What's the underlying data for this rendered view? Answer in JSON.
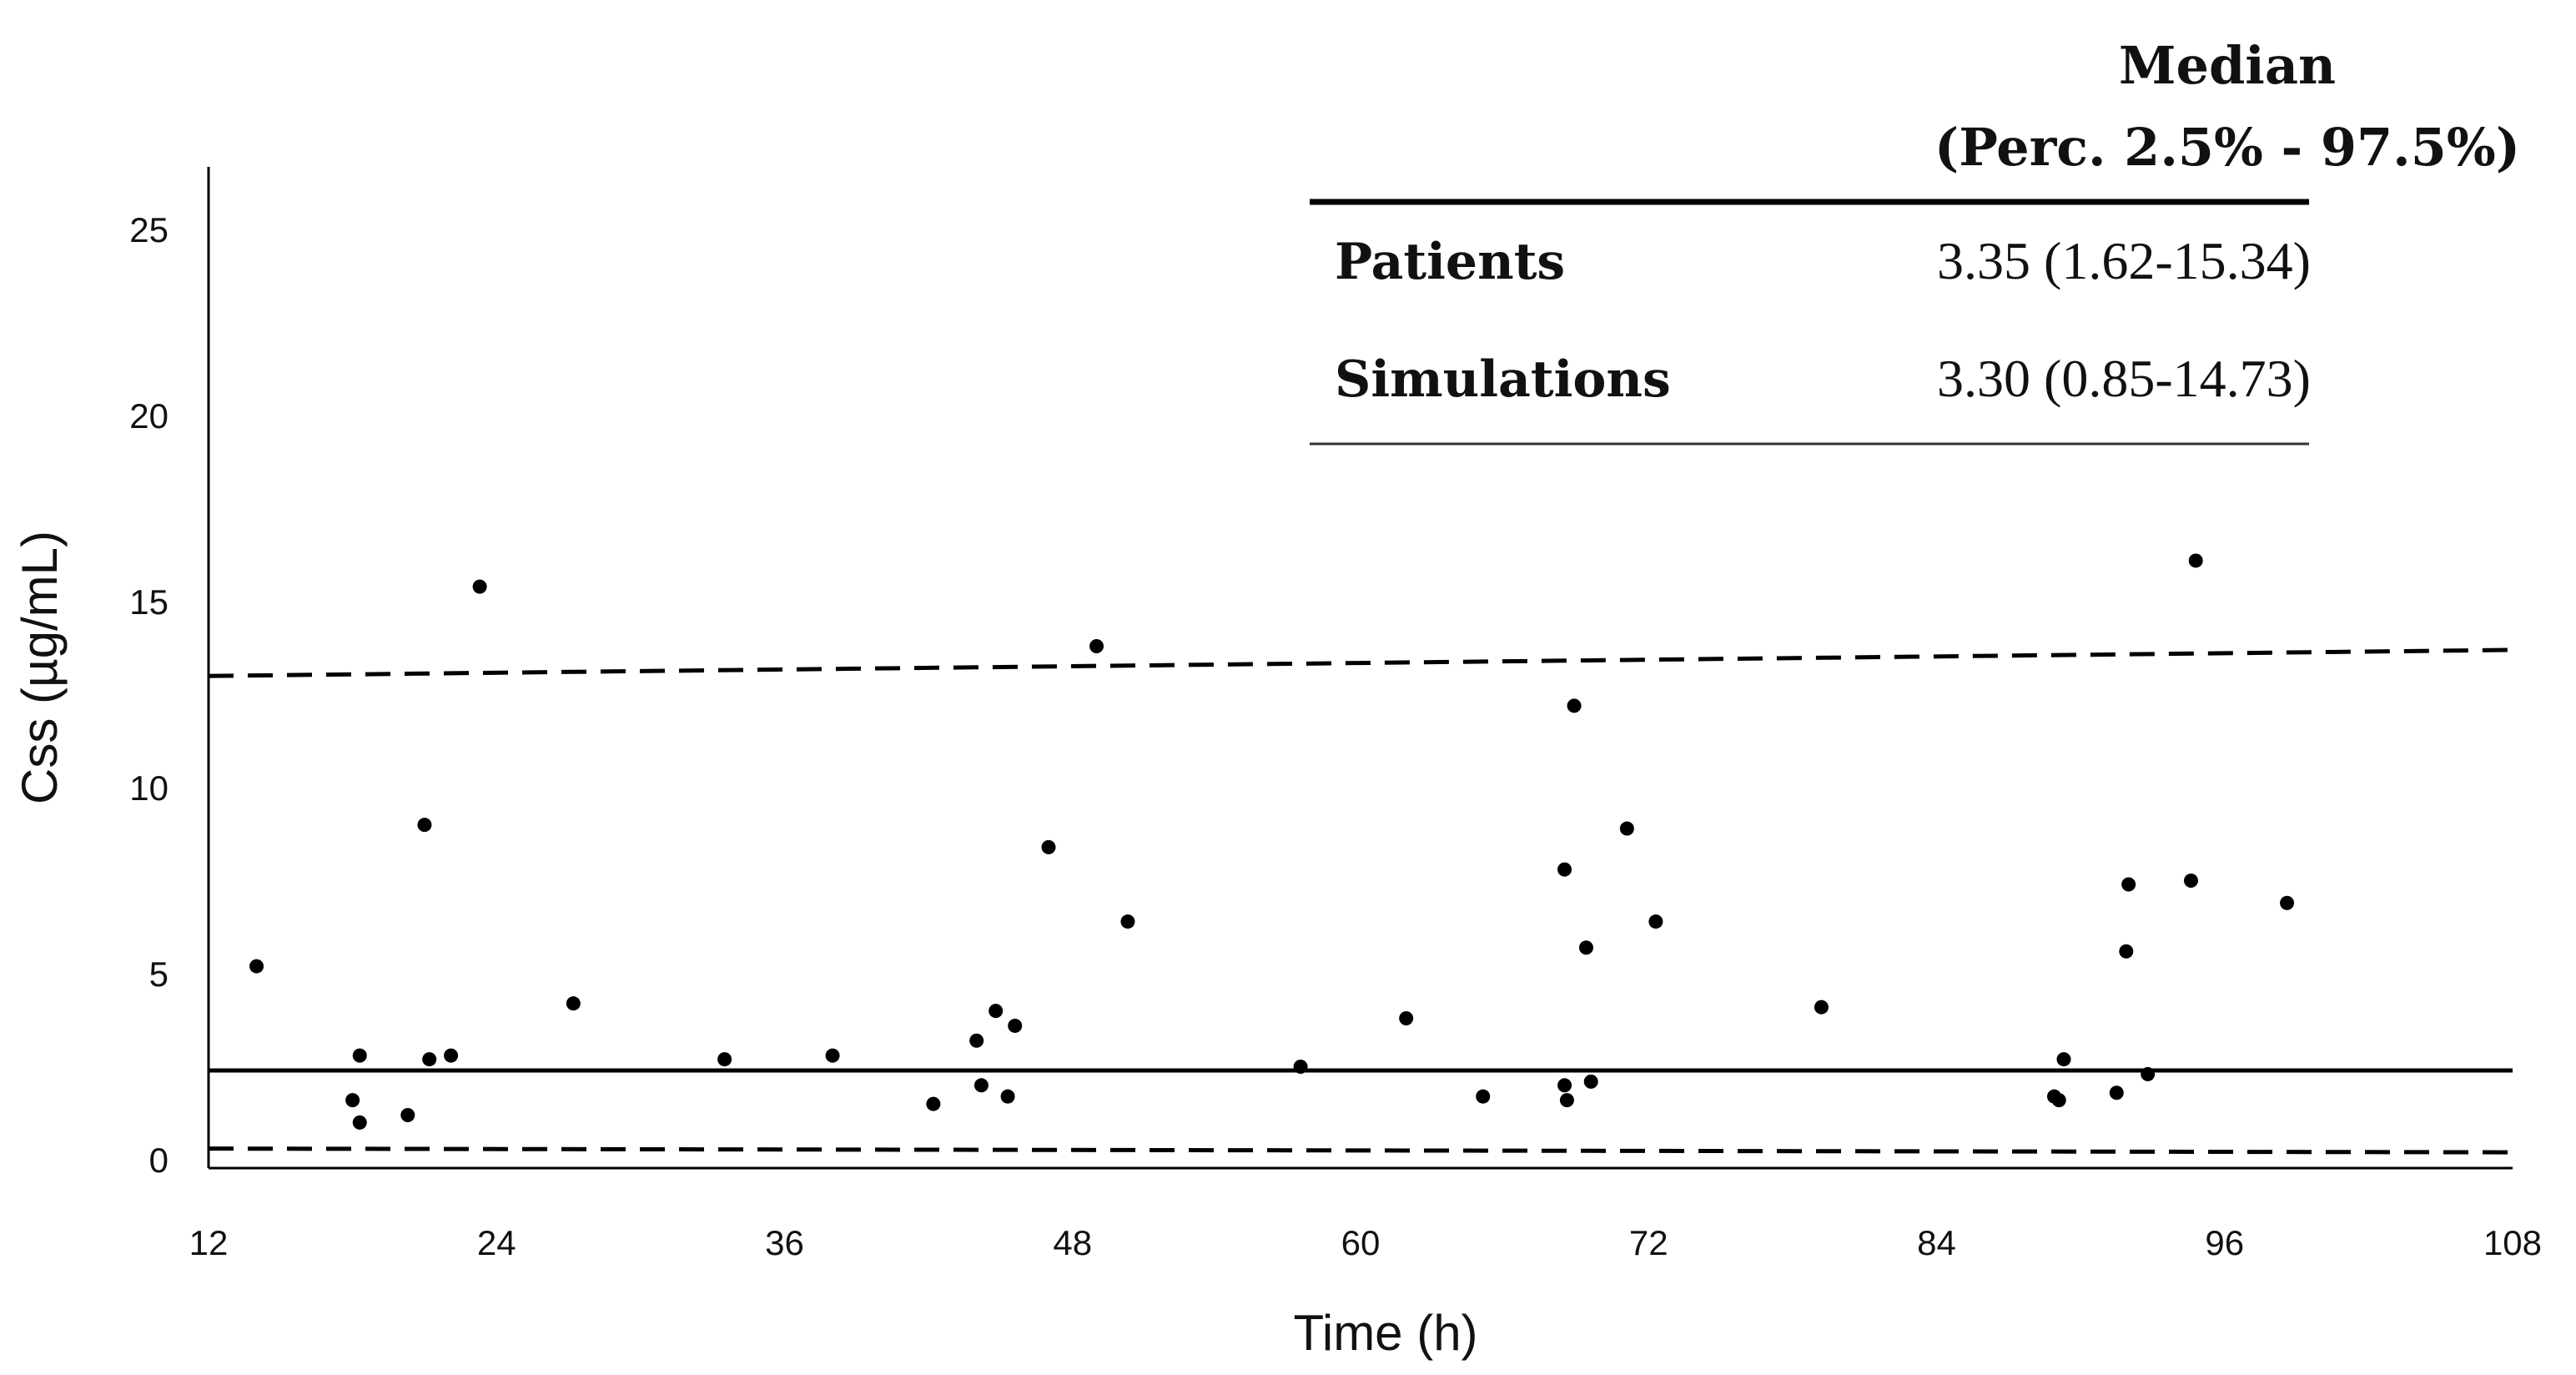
{
  "chart_data": {
    "type": "scatter",
    "title": "",
    "xlabel": "Time (h)",
    "ylabel": "Css (µg/mL)",
    "xlim": [
      12,
      108
    ],
    "ylim": [
      0,
      25
    ],
    "x_ticks": [
      "12",
      "24",
      "36",
      "48",
      "60",
      "72",
      "84",
      "96",
      "108"
    ],
    "y_ticks": [
      "0",
      "5",
      "10",
      "15",
      "20",
      "25"
    ],
    "grid": false,
    "points": [
      {
        "x": 14.0,
        "y": 5.2
      },
      {
        "x": 18.0,
        "y": 1.6
      },
      {
        "x": 18.3,
        "y": 2.8
      },
      {
        "x": 18.3,
        "y": 1.0
      },
      {
        "x": 20.3,
        "y": 1.2
      },
      {
        "x": 21.0,
        "y": 9.0
      },
      {
        "x": 21.2,
        "y": 2.7
      },
      {
        "x": 22.1,
        "y": 2.8
      },
      {
        "x": 23.3,
        "y": 15.4
      },
      {
        "x": 27.2,
        "y": 4.2
      },
      {
        "x": 33.5,
        "y": 2.7
      },
      {
        "x": 38.0,
        "y": 2.8
      },
      {
        "x": 42.2,
        "y": 1.5
      },
      {
        "x": 44.0,
        "y": 3.2
      },
      {
        "x": 44.2,
        "y": 2.0
      },
      {
        "x": 44.8,
        "y": 4.0
      },
      {
        "x": 45.3,
        "y": 1.7
      },
      {
        "x": 45.6,
        "y": 3.6
      },
      {
        "x": 47.0,
        "y": 8.4
      },
      {
        "x": 49.0,
        "y": 13.8
      },
      {
        "x": 50.3,
        "y": 6.4
      },
      {
        "x": 57.5,
        "y": 2.5
      },
      {
        "x": 61.9,
        "y": 3.8
      },
      {
        "x": 65.1,
        "y": 1.7
      },
      {
        "x": 68.5,
        "y": 7.8
      },
      {
        "x": 68.5,
        "y": 2.0
      },
      {
        "x": 68.6,
        "y": 1.6
      },
      {
        "x": 68.9,
        "y": 12.2
      },
      {
        "x": 69.4,
        "y": 5.7
      },
      {
        "x": 69.6,
        "y": 2.1
      },
      {
        "x": 71.1,
        "y": 8.9
      },
      {
        "x": 72.3,
        "y": 6.4
      },
      {
        "x": 79.2,
        "y": 4.1
      },
      {
        "x": 88.9,
        "y": 1.7
      },
      {
        "x": 89.1,
        "y": 1.6
      },
      {
        "x": 89.3,
        "y": 2.7
      },
      {
        "x": 91.5,
        "y": 1.8
      },
      {
        "x": 91.9,
        "y": 5.6
      },
      {
        "x": 92.0,
        "y": 7.4
      },
      {
        "x": 92.8,
        "y": 2.3
      },
      {
        "x": 94.6,
        "y": 7.5
      },
      {
        "x": 94.8,
        "y": 16.1
      },
      {
        "x": 98.6,
        "y": 6.9
      }
    ],
    "lines": [
      {
        "name": "median",
        "style": "solid",
        "x": [
          12,
          108
        ],
        "y": [
          2.4,
          2.4
        ]
      },
      {
        "name": "upper-percentile",
        "style": "dashed",
        "x": [
          12,
          108
        ],
        "y": [
          13.0,
          13.7
        ]
      },
      {
        "name": "lower-percentile",
        "style": "dashed",
        "x": [
          12,
          108
        ],
        "y": [
          0.3,
          0.2
        ]
      }
    ],
    "annotation_table": {
      "header": [
        "Median",
        "(Perc. 2.5% - 97.5%)"
      ],
      "rows": [
        {
          "label": "Patients",
          "value": "3.35 (1.62-15.34)"
        },
        {
          "label": "Simulations",
          "value": "3.30 (0.85-14.73)"
        }
      ]
    },
    "colors": {
      "marks": "#000000",
      "text": "#111111",
      "axis": "#000000"
    }
  }
}
